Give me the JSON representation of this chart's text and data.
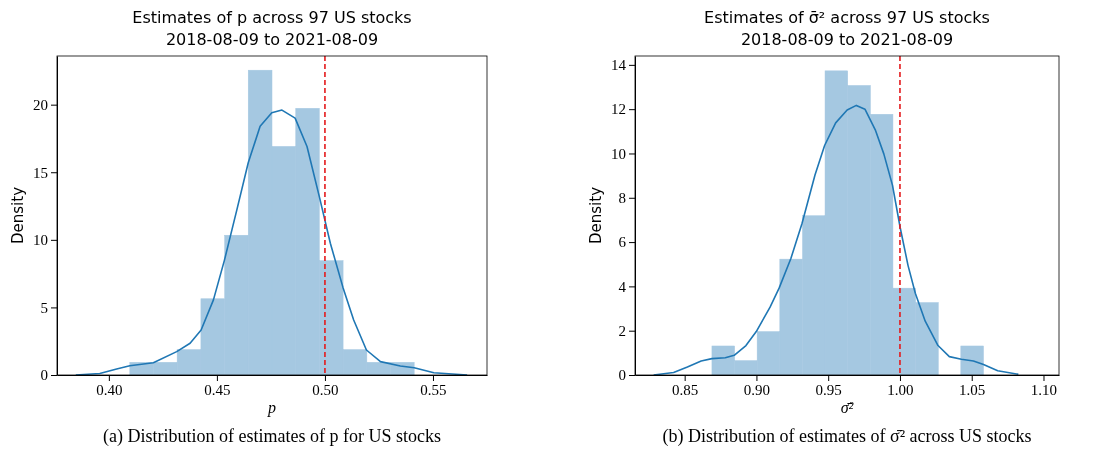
{
  "chart_data": [
    {
      "type": "histogram",
      "title": "Estimates of p across 97 US stocks",
      "subtitle": "2018-08-09 to 2021-08-09",
      "xlabel": "p",
      "ylabel": "Density",
      "annotations": [
        "(a) Distribution of estimates of p for US stocks"
      ],
      "bins": [
        0.4097,
        0.4207,
        0.4316,
        0.4426,
        0.4536,
        0.4645,
        0.4755,
        0.4865,
        0.4974,
        0.5084,
        0.5194,
        0.5303,
        0.5413
      ],
      "series": [
        {
          "color": "#a5c8e1",
          "values": [
            0.94,
            0.94,
            1.88,
            5.64,
            10.34,
            22.55,
            16.91,
            19.73,
            8.46,
            1.88,
            0.94,
            0.94
          ]
        },
        {
          "type": "line",
          "color": "#1f77b4",
          "x": [
            0.3847,
            0.3958,
            0.4036,
            0.4097,
            0.4206,
            0.4314,
            0.4376,
            0.4427,
            0.4484,
            0.4535,
            0.4592,
            0.4645,
            0.47,
            0.4754,
            0.4801,
            0.4862,
            0.4917,
            0.4974,
            0.5025,
            0.5083,
            0.5133,
            0.5192,
            0.5257,
            0.5349,
            0.5413,
            0.5504,
            0.5658
          ],
          "values": [
            0,
            0.11,
            0.44,
            0.69,
            0.91,
            1.73,
            2.35,
            3.33,
            5.56,
            8.5,
            12.2,
            15.7,
            18.4,
            19.4,
            19.6,
            19.0,
            16.9,
            13.2,
            9.75,
            6.5,
            4.07,
            1.85,
            0.99,
            0.67,
            0.54,
            0.17,
            0
          ]
        }
      ],
      "xlim": [
        0.376,
        0.575
      ],
      "ylim": [
        0,
        23.6
      ],
      "xticks": [
        {
          "value": 0.4,
          "label": "0.40"
        },
        {
          "value": 0.45,
          "label": "0.45"
        },
        {
          "value": 0.5,
          "label": "0.50"
        },
        {
          "value": 0.55,
          "label": "0.55"
        }
      ],
      "yticks": [
        0,
        5,
        10,
        15,
        20
      ],
      "ref_lines": [
        {
          "axis": "x",
          "value": 0.5,
          "color": "#e41a1c",
          "line_style": "dashed"
        }
      ]
    },
    {
      "type": "histogram",
      "title": "Estimates of σ̄² across 97 US stocks",
      "subtitle": "2018-08-09 to 2021-08-09",
      "xlabel": "σ̄²",
      "ylabel": "Density",
      "annotations": [
        "(b) Distribution of estimates of σ̄² across US stocks"
      ],
      "bins": [
        0.869,
        0.8848,
        0.9005,
        0.9163,
        0.9321,
        0.9478,
        0.9636,
        0.9794,
        0.9951,
        1.0109,
        1.0267,
        1.0424,
        1.0582
      ],
      "series": [
        {
          "color": "#a5c8e1",
          "values": [
            1.31,
            0.65,
            1.96,
            5.23,
            7.19,
            13.73,
            13.07,
            11.77,
            3.92,
            3.27,
            0,
            1.31
          ]
        },
        {
          "type": "line",
          "color": "#1f77b4",
          "x": [
            0.8284,
            0.8423,
            0.8519,
            0.8615,
            0.869,
            0.8783,
            0.8845,
            0.8927,
            0.8999,
            0.9095,
            0.9158,
            0.924,
            0.9317,
            0.9408,
            0.9475,
            0.9552,
            0.9632,
            0.9696,
            0.9756,
            0.9828,
            0.9888,
            0.9948,
            1.0001,
            1.0056,
            1.0107,
            1.0176,
            1.0265,
            1.0344,
            1.0428,
            1.0512,
            1.0582,
            1.0681,
            1.0825
          ],
          "values": [
            0,
            0.11,
            0.36,
            0.63,
            0.74,
            0.78,
            0.89,
            1.33,
            1.96,
            3.06,
            3.92,
            5.26,
            6.83,
            9.03,
            10.36,
            11.38,
            11.96,
            12.17,
            12.0,
            11.07,
            9.97,
            8.56,
            6.67,
            4.95,
            3.69,
            2.43,
            1.33,
            0.83,
            0.71,
            0.63,
            0.47,
            0.19,
            0.03
          ]
        }
      ],
      "xlim": [
        0.8154,
        1.1108
      ],
      "ylim": [
        0,
        14.4
      ],
      "xticks": [
        {
          "value": 0.85,
          "label": "0.85"
        },
        {
          "value": 0.9,
          "label": "0.90"
        },
        {
          "value": 0.95,
          "label": "0.95"
        },
        {
          "value": 1.0,
          "label": "1.00"
        },
        {
          "value": 1.05,
          "label": "1.05"
        },
        {
          "value": 1.1,
          "label": "1.10"
        }
      ],
      "yticks": [
        0,
        2,
        4,
        6,
        8,
        10,
        12,
        14
      ],
      "ref_lines": [
        {
          "axis": "x",
          "value": 1.0,
          "color": "#e41a1c",
          "line_style": "dashed"
        }
      ]
    }
  ]
}
